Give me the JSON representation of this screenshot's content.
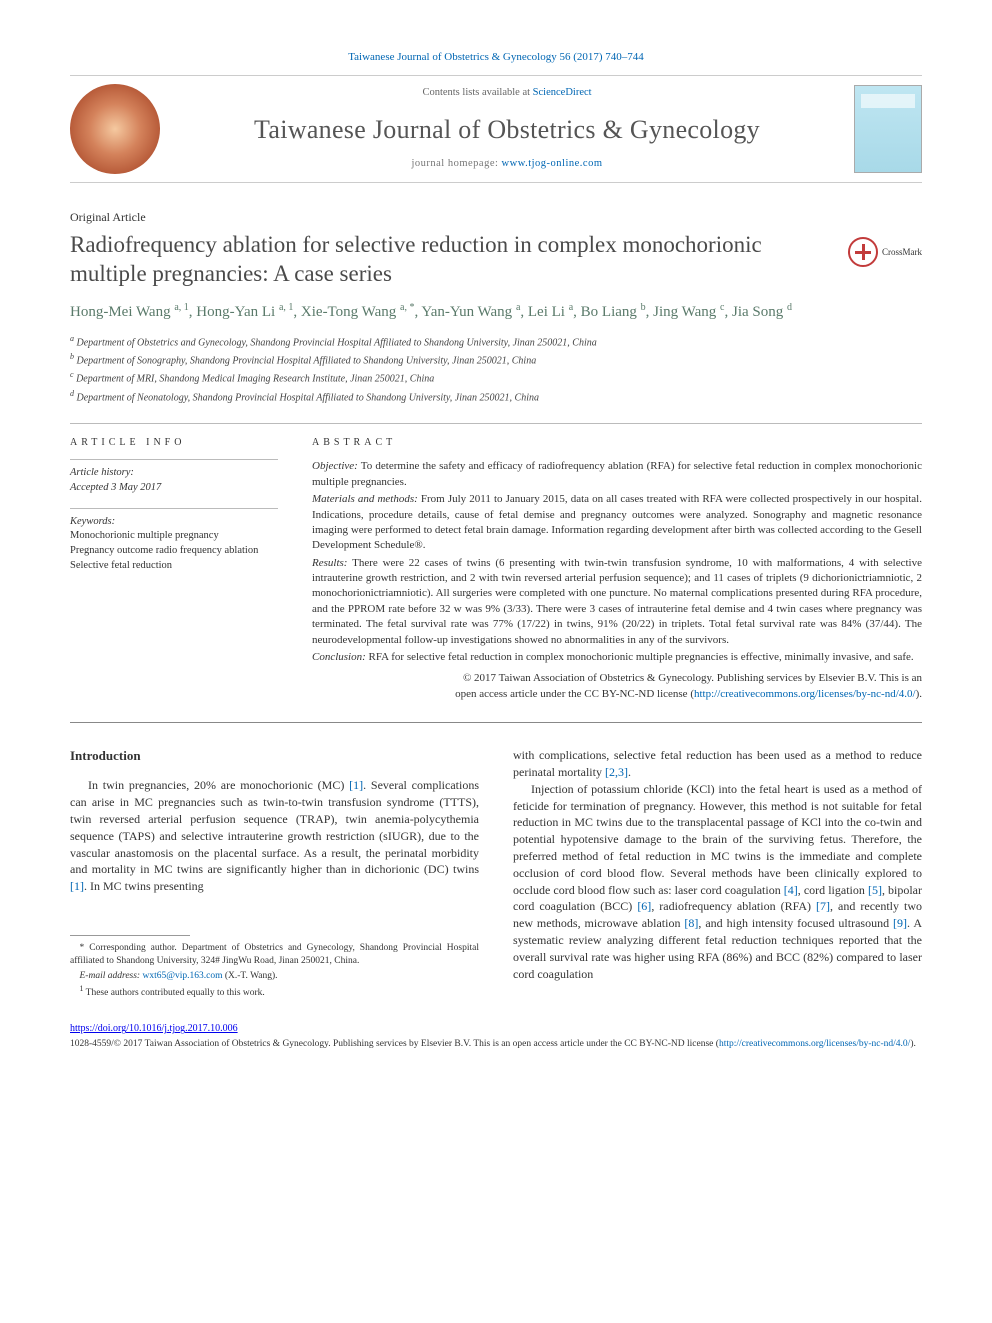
{
  "citation": "Taiwanese Journal of Obstetrics & Gynecology 56 (2017) 740–744",
  "header": {
    "contents_prefix": "Contents lists available at ",
    "contents_link": "ScienceDirect",
    "journal_name": "Taiwanese Journal of Obstetrics & Gynecology",
    "homepage_prefix": "journal homepage: ",
    "homepage_url": "www.tjog-online.com"
  },
  "article_type": "Original Article",
  "title": "Radiofrequency ablation for selective reduction in complex monochorionic multiple pregnancies: A case series",
  "crossmark_label": "CrossMark",
  "authors_html": "Hong-Mei Wang <sup>a, 1</sup>, Hong-Yan Li <sup>a, 1</sup>, Xie-Tong Wang <sup>a, *</sup>, Yan-Yun Wang <sup>a</sup>, Lei Li <sup>a</sup>, Bo Liang <sup>b</sup>, Jing Wang <sup>c</sup>, Jia Song <sup>d</sup>",
  "affiliations": [
    {
      "marker": "a",
      "text": "Department of Obstetrics and Gynecology, Shandong Provincial Hospital Affiliated to Shandong University, Jinan 250021, China"
    },
    {
      "marker": "b",
      "text": "Department of Sonography, Shandong Provincial Hospital Affiliated to Shandong University, Jinan 250021, China"
    },
    {
      "marker": "c",
      "text": "Department of MRI, Shandong Medical Imaging Research Institute, Jinan 250021, China"
    },
    {
      "marker": "d",
      "text": "Department of Neonatology, Shandong Provincial Hospital Affiliated to Shandong University, Jinan 250021, China"
    }
  ],
  "info": {
    "label": "ARTICLE INFO",
    "history_label": "Article history:",
    "accepted": "Accepted 3 May 2017",
    "keywords_label": "Keywords:",
    "keywords": [
      "Monochorionic multiple pregnancy",
      "Pregnancy outcome radio frequency ablation",
      "Selective fetal reduction"
    ]
  },
  "abstract": {
    "label": "ABSTRACT",
    "paragraphs": [
      {
        "run_in": "Objective:",
        "text": " To determine the safety and efficacy of radiofrequency ablation (RFA) for selective fetal reduction in complex monochorionic multiple pregnancies."
      },
      {
        "run_in": "Materials and methods:",
        "text": " From July 2011 to January 2015, data on all cases treated with RFA were collected prospectively in our hospital. Indications, procedure details, cause of fetal demise and pregnancy outcomes were analyzed. Sonography and magnetic resonance imaging were performed to detect fetal brain damage. Information regarding development after birth was collected according to the Gesell Development Schedule®."
      },
      {
        "run_in": "Results:",
        "text": " There were 22 cases of twins (6 presenting with twin-twin transfusion syndrome, 10 with malformations, 4 with selective intrauterine growth restriction, and 2 with twin reversed arterial perfusion sequence); and 11 cases of triplets (9 dichorionictriamniotic, 2 monochorionictriamniotic). All surgeries were completed with one puncture. No maternal complications presented during RFA procedure, and the PPROM rate before 32 w was 9% (3/33). There were 3 cases of intrauterine fetal demise and 4 twin cases where pregnancy was terminated. The fetal survival rate was 77% (17/22) in twins, 91% (20/22) in triplets. Total fetal survival rate was 84% (37/44). The neurodevelopmental follow-up investigations showed no abnormalities in any of the survivors."
      },
      {
        "run_in": "Conclusion:",
        "text": " RFA for selective fetal reduction in complex monochorionic multiple pregnancies is effective, minimally invasive, and safe."
      }
    ],
    "copyright_line1": "© 2017 Taiwan Association of Obstetrics & Gynecology. Publishing services by Elsevier B.V. This is an",
    "copyright_line2_prefix": "open access article under the CC BY-NC-ND license (",
    "copyright_url": "http://creativecommons.org/licenses/by-nc-nd/4.0/",
    "copyright_line2_suffix": ")."
  },
  "intro": {
    "heading": "Introduction",
    "left_para": "In twin pregnancies, 20% are monochorionic (MC) [1]. Several complications can arise in MC pregnancies such as twin-to-twin transfusion syndrome (TTTS), twin reversed arterial perfusion sequence (TRAP), twin anemia-polycythemia sequence (TAPS) and selective intrauterine growth restriction (sIUGR), due to the vascular anastomosis on the placental surface. As a result, the perinatal morbidity and mortality in MC twins are significantly higher than in dichorionic (DC) twins [1]. In MC twins presenting",
    "right_para1": "with complications, selective fetal reduction has been used as a method to reduce perinatal mortality [2,3].",
    "right_para2": "Injection of potassium chloride (KCl) into the fetal heart is used as a method of feticide for termination of pregnancy. However, this method is not suitable for fetal reduction in MC twins due to the transplacental passage of KCl into the co-twin and potential hypotensive damage to the brain of the surviving fetus. Therefore, the preferred method of fetal reduction in MC twins is the immediate and complete occlusion of cord blood flow. Several methods have been clinically explored to occlude cord blood flow such as: laser cord coagulation [4], cord ligation [5], bipolar cord coagulation (BCC) [6], radiofrequency ablation (RFA) [7], and recently two new methods, microwave ablation [8], and high intensity focused ultrasound [9]. A systematic review analyzing different fetal reduction techniques reported that the overall survival rate was higher using RFA (86%) and BCC (82%) compared to laser cord coagulation"
  },
  "footnotes": {
    "corr_label": "* Corresponding author.",
    "corr_text": " Department of Obstetrics and Gynecology, Shandong Provincial Hospital affiliated to Shandong University, 324# JingWu Road, Jinan 250021, China.",
    "email_label": "E-mail address:",
    "email": "wxt65@vip.163.com",
    "email_suffix": " (X.-T. Wang).",
    "contrib_marker": "1",
    "contrib_text": " These authors contributed equally to this work."
  },
  "doi": "https://doi.org/10.1016/j.tjog.2017.10.006",
  "license": {
    "prefix": "1028-4559/© 2017 Taiwan Association of Obstetrics & Gynecology. Publishing services by Elsevier B.V. This is an open access article under the CC BY-NC-ND license (",
    "url": "http://creativecommons.org/licenses/by-nc-nd/4.0/",
    "suffix": ")."
  },
  "colors": {
    "link": "#0066b3",
    "author": "#5a7a6a",
    "text": "#333333"
  }
}
